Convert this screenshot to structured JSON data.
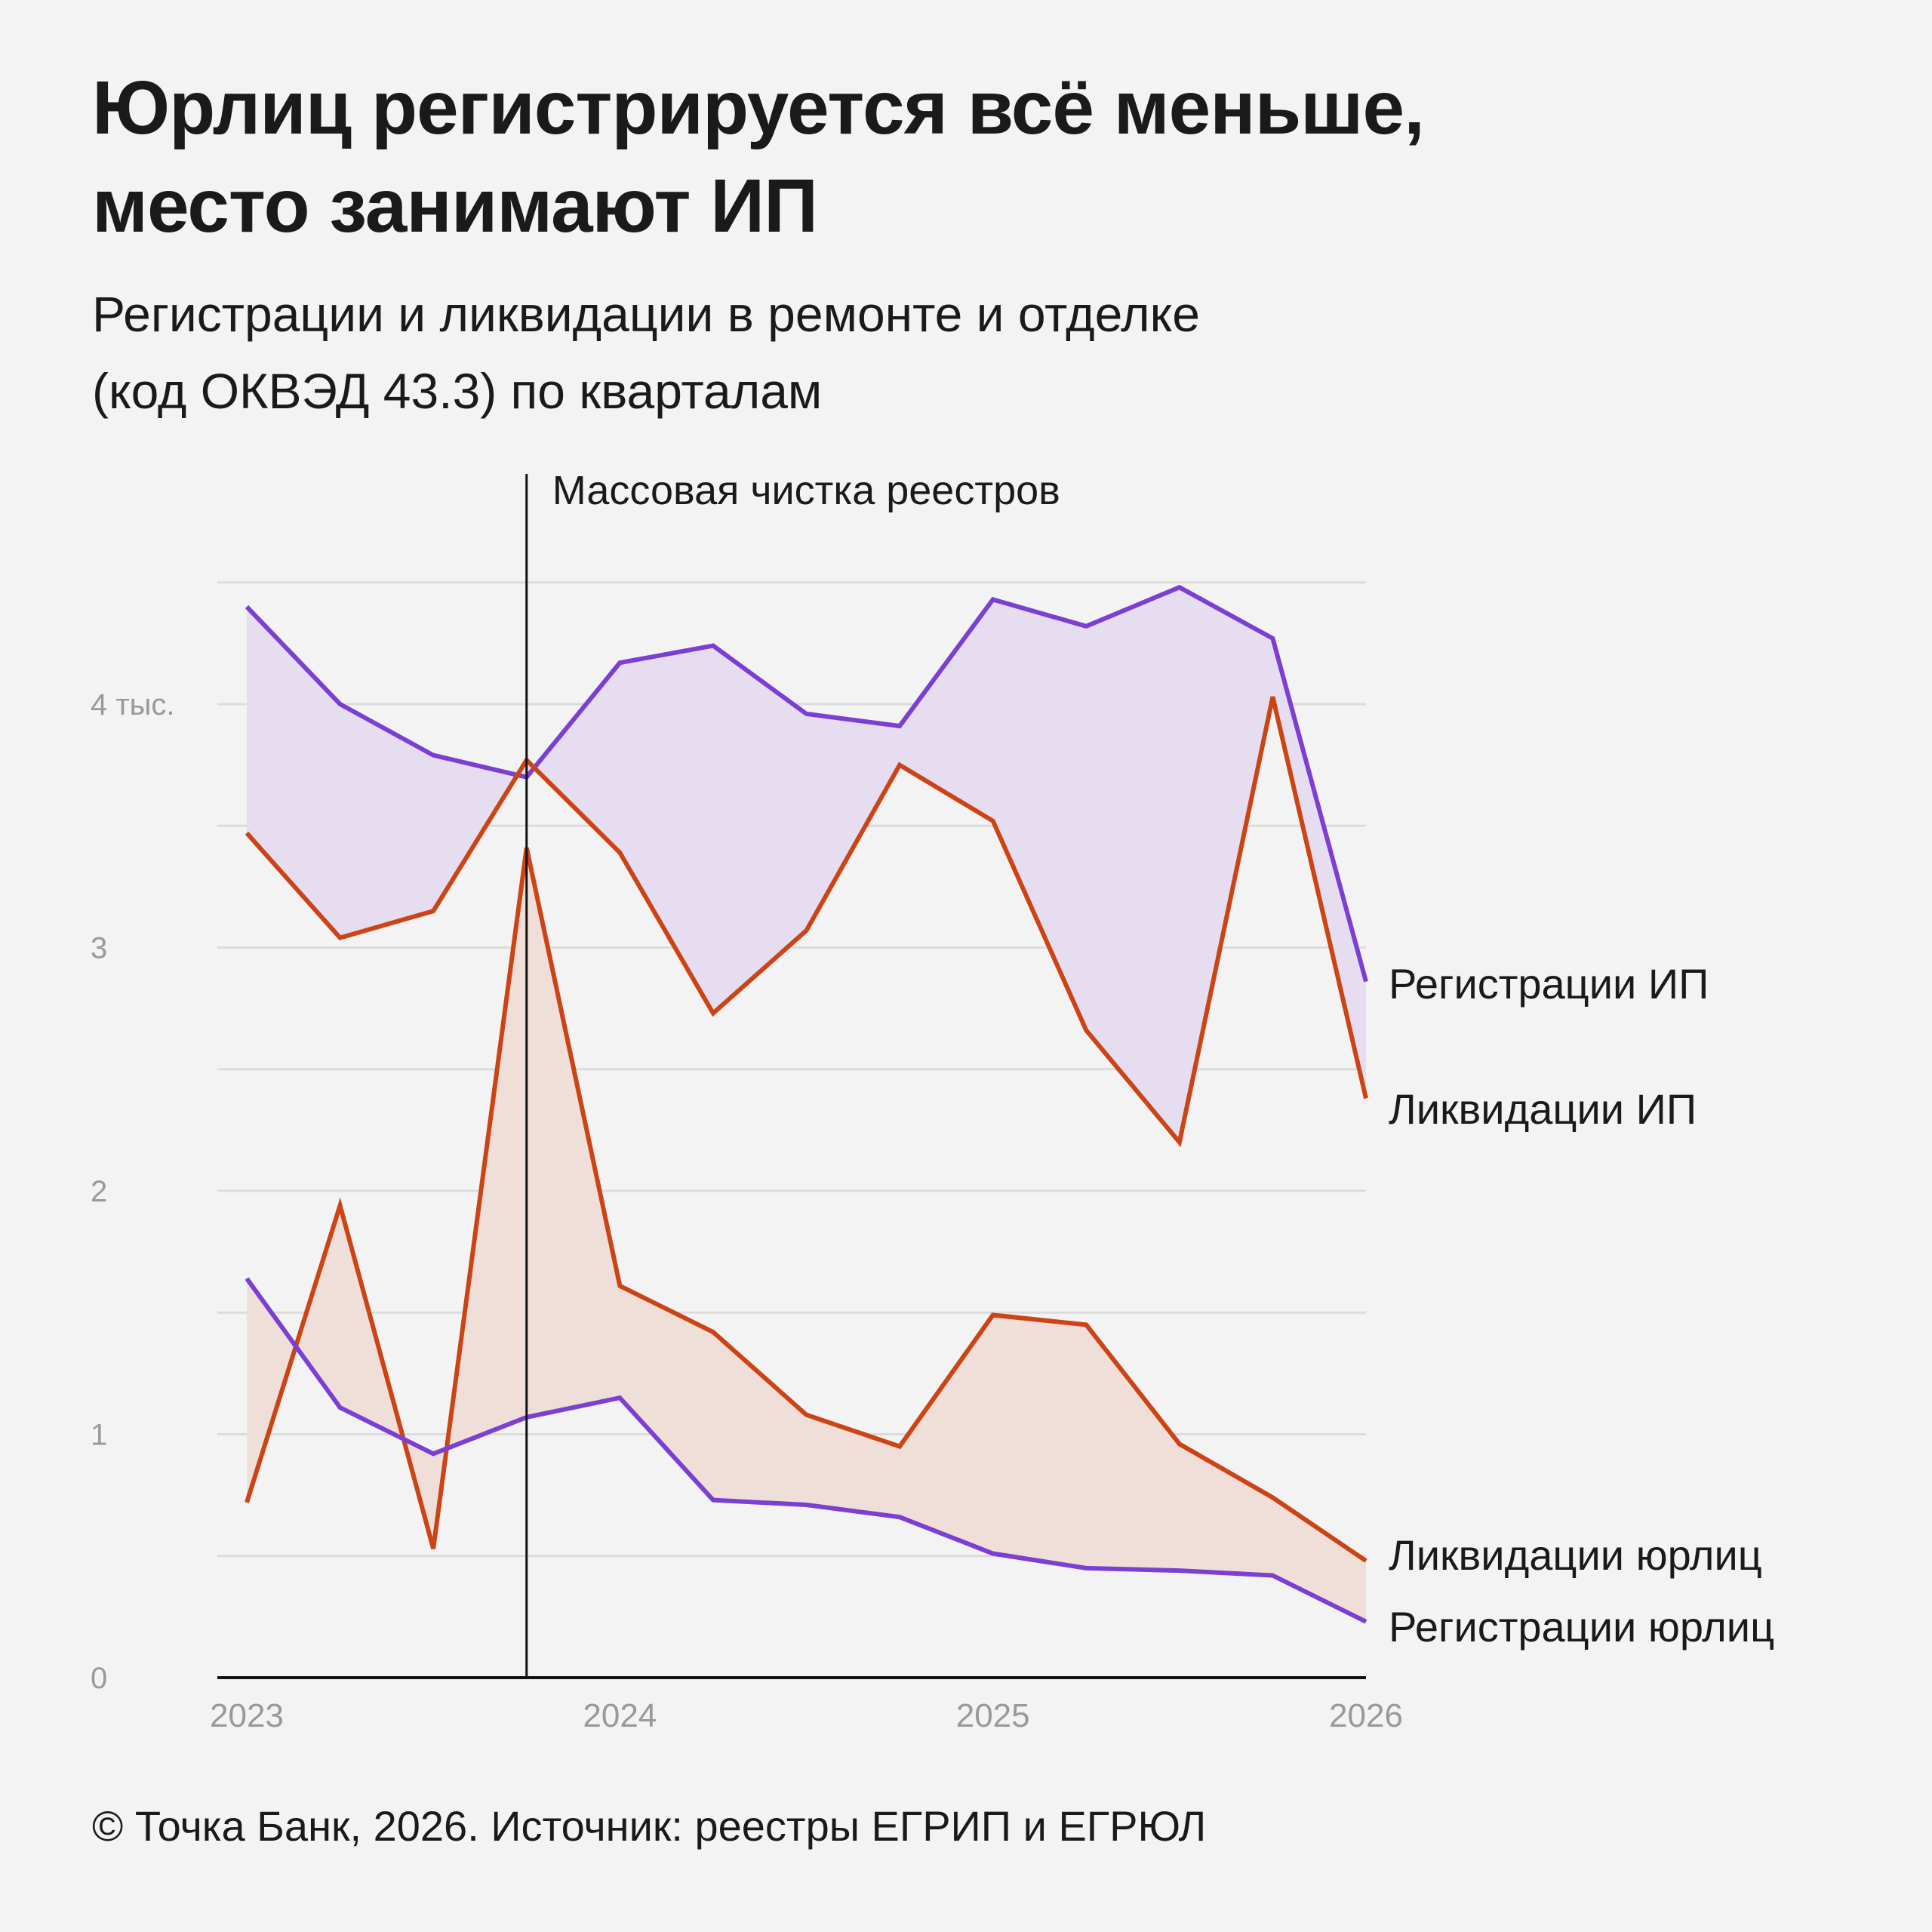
{
  "header": {
    "title_line1": "Юрлиц регистрируется всё меньше,",
    "title_line2": "место занимают ИП",
    "subtitle_line1": "Регистрации и ликвидации в ремонте и отделке",
    "subtitle_line2": "(код ОКВЭД 43.3) по кварталам"
  },
  "footer": {
    "source": "© Точка Банк, 2026. Источник: реестры ЕГРИП и ЕГРЮЛ"
  },
  "chart_data": {
    "type": "line",
    "x": [
      2023.0,
      2023.25,
      2023.5,
      2023.75,
      2024.0,
      2024.25,
      2024.5,
      2024.75,
      2025.0,
      2025.25,
      2025.5,
      2025.75,
      2026.0
    ],
    "series": [
      {
        "name": "Регистрации ИП",
        "color": "#7b3fd4",
        "values": [
          4.4,
          4.0,
          3.79,
          3.7,
          4.17,
          4.24,
          3.96,
          3.91,
          4.43,
          4.32,
          4.48,
          4.27,
          2.86
        ]
      },
      {
        "name": "Ликвидации ИП",
        "color": "#cc4416",
        "values": [
          3.47,
          3.04,
          3.15,
          3.77,
          3.39,
          2.73,
          3.07,
          3.75,
          3.52,
          2.66,
          2.2,
          4.03,
          2.38
        ]
      },
      {
        "name": "Ликвидации юрлиц",
        "color": "#cc4416",
        "values": [
          0.72,
          1.94,
          0.53,
          3.41,
          1.61,
          1.42,
          1.08,
          0.95,
          1.49,
          1.45,
          0.96,
          0.74,
          0.48
        ]
      },
      {
        "name": "Регистрации юрлиц",
        "color": "#7b3fd4",
        "values": [
          1.64,
          1.11,
          0.92,
          1.07,
          1.15,
          0.73,
          0.71,
          0.66,
          0.51,
          0.45,
          0.44,
          0.42,
          0.23
        ]
      }
    ],
    "fills": {
      "ip": "#e6def0",
      "legal_entities": "#f0dfd9"
    },
    "ylim": [
      0,
      5
    ],
    "yticks": [
      {
        "value": 0,
        "label": "0"
      },
      {
        "value": 1,
        "label": "1"
      },
      {
        "value": 2,
        "label": "2"
      },
      {
        "value": 3,
        "label": "3"
      },
      {
        "value": 4,
        "label": "4 тыс."
      }
    ],
    "xticks": [
      {
        "value": 2023,
        "label": "2023"
      },
      {
        "value": 2024,
        "label": "2024"
      },
      {
        "value": 2025,
        "label": "2025"
      },
      {
        "value": 2026,
        "label": "2026"
      }
    ],
    "annotation": {
      "x": 2023.75,
      "label": "Массовая чистка реестров"
    },
    "grid": true,
    "legend": "inline labels at right end"
  }
}
